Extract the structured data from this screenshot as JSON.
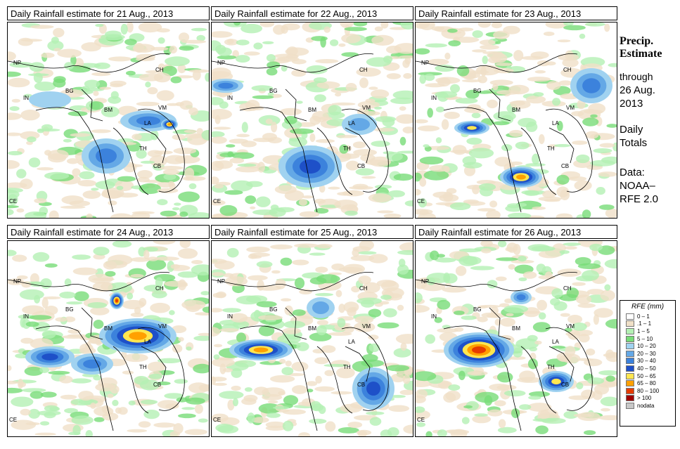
{
  "panels": [
    {
      "title": "Daily Rainfall estimate for  21 Aug., 2013",
      "day": 21
    },
    {
      "title": "Daily Rainfall estimate for  22 Aug., 2013",
      "day": 22
    },
    {
      "title": "Daily Rainfall estimate for  23 Aug., 2013",
      "day": 23
    },
    {
      "title": "Daily Rainfall estimate for  24 Aug., 2013",
      "day": 24
    },
    {
      "title": "Daily Rainfall estimate for  25 Aug., 2013",
      "day": 25
    },
    {
      "title": "Daily Rainfall estimate for  26 Aug., 2013",
      "day": 26
    }
  ],
  "country_labels": [
    "NP",
    "CH",
    "IN",
    "BG",
    "BM",
    "VM",
    "LA",
    "TH",
    "CB",
    "CE"
  ],
  "side": {
    "title_line1": "Precip.",
    "title_line2": "Estimate",
    "through_line1": "through",
    "through_line2": "26 Aug.",
    "through_line3": "2013",
    "daily_line1": "Daily",
    "daily_line2": "Totals",
    "data_line1": "Data:",
    "data_line2": "NOAA–",
    "data_line3": "RFE 2.0"
  },
  "legend": {
    "title": "RFE (mm)",
    "items": [
      {
        "label": "0 – 1",
        "color": "#ffffff"
      },
      {
        "label": ".1 – 1",
        "color": "#f0e0c8"
      },
      {
        "label": "1 – 5",
        "color": "#b4f0b4"
      },
      {
        "label": "5 – 10",
        "color": "#78dc78"
      },
      {
        "label": "10 – 20",
        "color": "#a0d2f0"
      },
      {
        "label": "20 – 30",
        "color": "#64a8e6"
      },
      {
        "label": "30 – 40",
        "color": "#3c82dc"
      },
      {
        "label": "40 – 50",
        "color": "#1e50c8"
      },
      {
        "label": "50 – 65",
        "color": "#ffe650"
      },
      {
        "label": "65 – 80",
        "color": "#ffa000"
      },
      {
        "label": "80 – 100",
        "color": "#e63c00"
      },
      {
        "label": "> 100",
        "color": "#a00000"
      },
      {
        "label": "nodata",
        "color": "#c8c8c8"
      }
    ]
  }
}
